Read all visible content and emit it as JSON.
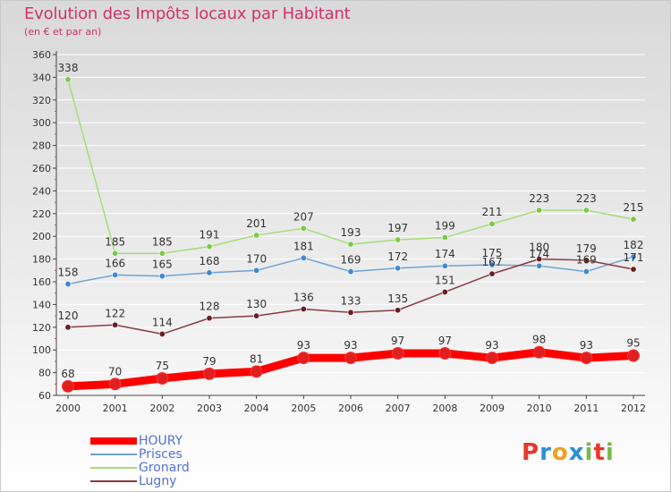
{
  "header": {
    "title": "Evolution des Impôts locaux par Habitant",
    "subtitle": "(en € et par an)"
  },
  "legend": {
    "items": [
      {
        "label": "HOURY"
      },
      {
        "label": "Prisces"
      },
      {
        "label": "Gronard"
      },
      {
        "label": "Lugny"
      }
    ]
  },
  "logo": {
    "text": "Proxiti"
  },
  "colors": {
    "title": "#d2306d",
    "axis": "#444444",
    "grid": "#ffffff",
    "legend_text": "#5470d8",
    "logo_letters": [
      "#e8382a",
      "#2c8fd6",
      "#f0a020",
      "#2c8fd6",
      "#7ab84a",
      "#e8382a",
      "#7ab84a"
    ]
  },
  "chart_data": {
    "type": "line",
    "title": "Evolution des Impôts locaux par Habitant",
    "subtitle": "(en € et par an)",
    "xlabel": "",
    "ylabel": "",
    "x": [
      "2000",
      "2001",
      "2002",
      "2003",
      "2004",
      "2005",
      "2006",
      "2007",
      "2008",
      "2009",
      "2010",
      "2011",
      "2012"
    ],
    "ylim": [
      60,
      360
    ],
    "yticks": [
      60,
      80,
      100,
      120,
      140,
      160,
      180,
      200,
      220,
      240,
      260,
      280,
      300,
      320,
      340,
      360
    ],
    "grid": true,
    "legend_position": "bottom-left",
    "series": [
      {
        "name": "HOURY",
        "color": "#ff0000",
        "marker": "#e02020",
        "emphasis": true,
        "values": [
          68,
          70,
          75,
          79,
          81,
          93,
          93,
          97,
          97,
          93,
          98,
          93,
          95
        ],
        "labels": [
          "68",
          "70",
          "75",
          "79",
          "81",
          "93",
          "93",
          "97",
          "97",
          "93",
          "98",
          "93",
          "95"
        ]
      },
      {
        "name": "Prisces",
        "color": "#6fa2d0",
        "marker": "#3d8ad6",
        "emphasis": false,
        "values": [
          158,
          166,
          165,
          168,
          170,
          181,
          169,
          172,
          174,
          175,
          174,
          169,
          182
        ],
        "labels": [
          "158",
          "166",
          "165",
          "168",
          "170",
          "181",
          "169",
          "172",
          "174",
          "175",
          "174",
          "169",
          "182"
        ]
      },
      {
        "name": "Gronard",
        "color": "#a6dc78",
        "marker": "#7ac943",
        "emphasis": false,
        "values": [
          338,
          185,
          185,
          191,
          201,
          207,
          193,
          197,
          199,
          211,
          223,
          223,
          215
        ],
        "labels": [
          "338",
          "185",
          "185",
          "191",
          "201",
          "207",
          "193",
          "197",
          "199",
          "211",
          "223",
          "223",
          "215"
        ]
      },
      {
        "name": "Lugny",
        "color": "#8a3a42",
        "marker": "#6a1e24",
        "emphasis": false,
        "values": [
          120,
          122,
          114,
          128,
          130,
          136,
          133,
          135,
          151,
          167,
          180,
          179,
          171
        ],
        "labels": [
          "120",
          "122",
          "114",
          "128",
          "130",
          "136",
          "133",
          "135",
          "151",
          "167",
          "180",
          "179",
          "171"
        ]
      }
    ]
  }
}
